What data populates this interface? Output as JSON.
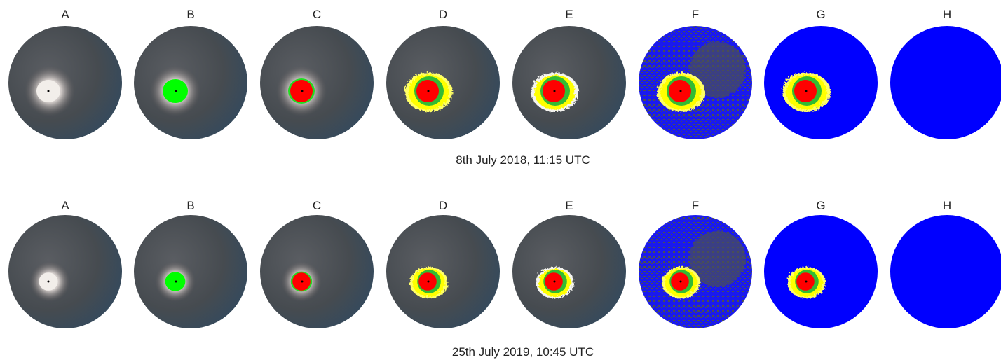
{
  "rows": [
    {
      "panels": [
        "A",
        "B",
        "C",
        "D",
        "E",
        "F",
        "G",
        "H"
      ],
      "caption": "8th July 2018, 11:15 UTC"
    },
    {
      "panels": [
        "A",
        "B",
        "C",
        "D",
        "E",
        "F",
        "G",
        "H"
      ],
      "caption": "25th July 2019, 10:45 UTC"
    }
  ]
}
